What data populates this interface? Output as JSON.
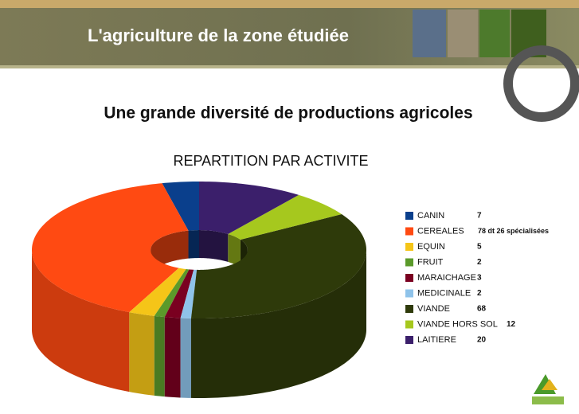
{
  "header": {
    "title": "L'agriculture de la zone étudiée"
  },
  "heading": "Une grande diversité de productions agricoles",
  "chart_data": {
    "type": "donut3d",
    "title": "REPARTITION PAR ACTIVITE",
    "categories": [
      "CANIN",
      "CEREALES",
      "EQUIN",
      "FRUIT",
      "MARAICHAGE",
      "MEDICINALE",
      "VIANDE",
      "VIANDE HORS SOL",
      "LAITIERE"
    ],
    "values": [
      7,
      78,
      5,
      2,
      3,
      2,
      68,
      12,
      20
    ],
    "value_labels": [
      "7",
      "78 dt 26 spécialisées",
      "5",
      "2",
      "3",
      "2",
      "68",
      "12",
      "20"
    ],
    "colors": [
      "#0a3f8c",
      "#ff4a12",
      "#f5c518",
      "#5b9a2a",
      "#7a0020",
      "#8fc3ea",
      "#2e3a0a",
      "#a6c81e",
      "#3b1f6b"
    ],
    "legend": "right"
  }
}
